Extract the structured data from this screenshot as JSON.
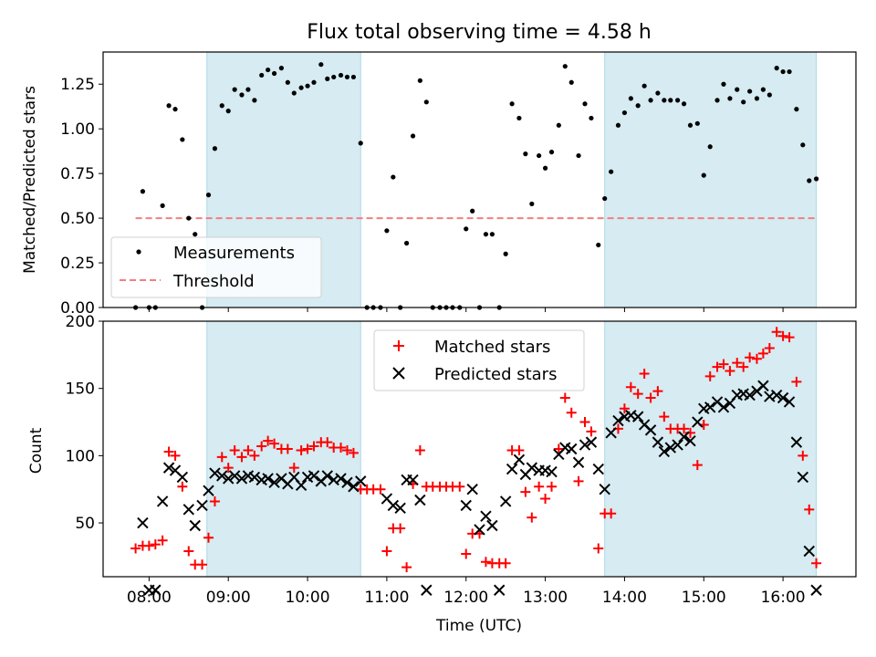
{
  "figure_title": "Flux total observing time = 4.58 h",
  "chart_data": [
    {
      "type": "scatter",
      "title": "Flux total observing time = 4.58 h",
      "xlabel": "",
      "ylabel": "Matched/Predicted stars",
      "xlim": [
        7.42,
        16.92
      ],
      "ylim": [
        0,
        1.43
      ],
      "yticks": [
        0.0,
        0.25,
        0.5,
        0.75,
        1.0,
        1.25
      ],
      "ytick_labels": [
        "0.00",
        "0.25",
        "0.50",
        "0.75",
        "1.00",
        "1.25"
      ],
      "shaded_intervals": [
        [
          8.73,
          10.67
        ],
        [
          13.75,
          16.42
        ]
      ],
      "legend_position": "lower-left",
      "threshold": {
        "name": "Threshold",
        "x": [
          7.83,
          16.42
        ],
        "y": 0.5,
        "color": "#f08080"
      },
      "series": [
        {
          "name": "Measurements",
          "color": "#000000",
          "marker": "dot",
          "x": [
            7.83,
            7.92,
            8.0,
            8.08,
            8.17,
            8.25,
            8.33,
            8.42,
            8.5,
            8.58,
            8.67,
            8.75,
            8.83,
            8.92,
            9.0,
            9.08,
            9.17,
            9.25,
            9.33,
            9.42,
            9.5,
            9.58,
            9.67,
            9.75,
            9.83,
            9.92,
            10.0,
            10.08,
            10.17,
            10.25,
            10.33,
            10.42,
            10.5,
            10.58,
            10.67,
            10.75,
            10.83,
            10.92,
            11.0,
            11.08,
            11.17,
            11.25,
            11.33,
            11.42,
            11.5,
            11.58,
            11.67,
            11.75,
            11.83,
            11.92,
            12.0,
            12.08,
            12.17,
            12.25,
            12.33,
            12.42,
            12.5,
            12.58,
            12.67,
            12.75,
            12.83,
            12.92,
            13.0,
            13.08,
            13.17,
            13.25,
            13.33,
            13.42,
            13.5,
            13.58,
            13.67,
            13.75,
            13.83,
            13.92,
            14.0,
            14.08,
            14.17,
            14.25,
            14.33,
            14.42,
            14.5,
            14.58,
            14.67,
            14.75,
            14.83,
            14.92,
            15.0,
            15.08,
            15.17,
            15.25,
            15.33,
            15.42,
            15.5,
            15.58,
            15.67,
            15.75,
            15.83,
            15.92,
            16.0,
            16.08,
            16.17,
            16.25,
            16.33,
            16.42
          ],
          "y": [
            0.0,
            0.65,
            0.0,
            0.0,
            0.57,
            1.13,
            1.11,
            0.94,
            0.5,
            0.41,
            0.0,
            0.63,
            0.89,
            1.13,
            1.1,
            1.22,
            1.19,
            1.22,
            1.16,
            1.3,
            1.33,
            1.31,
            1.34,
            1.26,
            1.2,
            1.23,
            1.24,
            1.26,
            1.36,
            1.28,
            1.29,
            1.3,
            1.29,
            1.29,
            0.92,
            0.0,
            0.0,
            0.0,
            0.43,
            0.73,
            0.0,
            0.36,
            0.96,
            1.27,
            1.15,
            0.0,
            0.0,
            0.0,
            0.0,
            0.0,
            0.44,
            0.54,
            0.0,
            0.41,
            0.41,
            0.0,
            0.3,
            1.14,
            1.06,
            0.86,
            0.58,
            0.85,
            0.78,
            0.87,
            1.02,
            1.35,
            1.26,
            0.85,
            1.14,
            1.06,
            0.35,
            0.61,
            0.76,
            1.02,
            1.09,
            1.17,
            1.13,
            1.24,
            1.16,
            1.2,
            1.16,
            1.16,
            1.16,
            1.14,
            1.02,
            1.03,
            0.74,
            0.9,
            1.16,
            1.25,
            1.17,
            1.22,
            1.15,
            1.21,
            1.17,
            1.22,
            1.19,
            1.34,
            1.32,
            1.32,
            1.11,
            0.91,
            0.71,
            0.72
          ]
        }
      ]
    },
    {
      "type": "scatter",
      "title": "",
      "xlabel": "Time (UTC)",
      "ylabel": "Count",
      "xlim": [
        7.42,
        16.92
      ],
      "ylim": [
        10,
        200
      ],
      "xticks": [
        8,
        9,
        10,
        11,
        12,
        13,
        14,
        15,
        16
      ],
      "xtick_labels": [
        "08:00",
        "09:00",
        "10:00",
        "11:00",
        "12:00",
        "13:00",
        "14:00",
        "15:00",
        "16:00"
      ],
      "yticks": [
        50,
        100,
        150,
        200
      ],
      "ytick_labels": [
        "50",
        "100",
        "150",
        "200"
      ],
      "shaded_intervals": [
        [
          8.73,
          10.67
        ],
        [
          13.75,
          16.42
        ]
      ],
      "legend_position": "upper-center",
      "series": [
        {
          "name": "Matched stars",
          "color": "#ff0000",
          "marker": "plus",
          "x": [
            7.83,
            7.92,
            8.0,
            8.08,
            8.17,
            8.25,
            8.33,
            8.42,
            8.5,
            8.58,
            8.67,
            8.75,
            8.83,
            8.92,
            9.0,
            9.08,
            9.17,
            9.25,
            9.33,
            9.42,
            9.5,
            9.58,
            9.67,
            9.75,
            9.83,
            9.92,
            10.0,
            10.08,
            10.17,
            10.25,
            10.33,
            10.42,
            10.5,
            10.58,
            10.67,
            10.75,
            10.83,
            10.92,
            11.0,
            11.08,
            11.17,
            11.25,
            11.33,
            11.42,
            11.5,
            11.58,
            11.67,
            11.75,
            11.83,
            11.92,
            12.0,
            12.08,
            12.17,
            12.25,
            12.33,
            12.42,
            12.5,
            12.58,
            12.67,
            12.75,
            12.83,
            12.92,
            13.0,
            13.08,
            13.17,
            13.25,
            13.33,
            13.42,
            13.5,
            13.58,
            13.67,
            13.75,
            13.83,
            13.92,
            14.0,
            14.08,
            14.17,
            14.25,
            14.33,
            14.42,
            14.5,
            14.58,
            14.67,
            14.75,
            14.83,
            14.92,
            15.0,
            15.08,
            15.17,
            15.25,
            15.33,
            15.42,
            15.5,
            15.58,
            15.67,
            15.75,
            15.83,
            15.92,
            16.0,
            16.08,
            16.17,
            16.25,
            16.33,
            16.42
          ],
          "y": [
            31,
            33,
            33,
            34,
            37,
            103,
            100,
            77,
            29,
            19,
            19,
            39,
            66,
            99,
            91,
            104,
            99,
            104,
            100,
            107,
            111,
            109,
            105,
            105,
            91,
            104,
            105,
            107,
            110,
            110,
            106,
            106,
            104,
            102,
            75,
            75,
            75,
            75,
            29,
            46,
            46,
            17,
            79,
            104,
            77,
            77,
            77,
            77,
            77,
            77,
            27,
            42,
            42,
            21,
            20,
            20,
            20,
            104,
            104,
            73,
            54,
            77,
            68,
            77,
            105,
            143,
            132,
            81,
            125,
            118,
            31,
            57,
            57,
            120,
            135,
            151,
            146,
            161,
            143,
            148,
            129,
            120,
            120,
            120,
            117,
            93,
            123,
            159,
            166,
            168,
            163,
            169,
            166,
            173,
            172,
            176,
            180,
            192,
            189,
            188,
            155,
            100,
            60,
            20
          ]
        },
        {
          "name": "Predicted stars",
          "color": "#000000",
          "marker": "x",
          "x": [
            7.92,
            8.0,
            8.08,
            8.17,
            8.25,
            8.33,
            8.42,
            8.5,
            8.58,
            8.67,
            8.75,
            8.83,
            8.92,
            9.0,
            9.08,
            9.17,
            9.25,
            9.33,
            9.42,
            9.5,
            9.58,
            9.67,
            9.75,
            9.83,
            9.92,
            10.0,
            10.08,
            10.17,
            10.25,
            10.33,
            10.42,
            10.5,
            10.58,
            10.67,
            11.0,
            11.08,
            11.17,
            11.25,
            11.33,
            11.42,
            11.5,
            12.0,
            12.08,
            12.17,
            12.25,
            12.33,
            12.42,
            12.5,
            12.58,
            12.67,
            12.75,
            12.83,
            12.92,
            13.0,
            13.08,
            13.17,
            13.25,
            13.33,
            13.42,
            13.5,
            13.58,
            13.67,
            13.75,
            13.83,
            13.92,
            14.0,
            14.08,
            14.17,
            14.25,
            14.33,
            14.42,
            14.5,
            14.58,
            14.67,
            14.75,
            14.83,
            14.92,
            15.0,
            15.08,
            15.17,
            15.25,
            15.33,
            15.42,
            15.5,
            15.58,
            15.67,
            15.75,
            15.83,
            15.92,
            16.0,
            16.08,
            16.17,
            16.25,
            16.33,
            16.42
          ],
          "y": [
            50,
            0,
            0,
            66,
            91,
            89,
            84,
            60,
            48,
            63,
            74,
            87,
            85,
            83,
            85,
            83,
            85,
            84,
            82,
            83,
            80,
            83,
            79,
            84,
            78,
            84,
            85,
            81,
            85,
            82,
            83,
            80,
            77,
            81,
            68,
            63,
            61,
            82,
            82,
            67,
            0,
            63,
            75,
            45,
            55,
            48,
            0,
            66,
            90,
            97,
            86,
            91,
            89,
            89,
            88,
            101,
            106,
            105,
            95,
            108,
            110,
            90,
            75,
            117,
            126,
            129,
            130,
            129,
            123,
            119,
            110,
            103,
            106,
            108,
            114,
            111,
            125,
            135,
            136,
            140,
            136,
            139,
            145,
            146,
            145,
            148,
            152,
            144,
            145,
            143,
            140,
            110,
            84,
            29,
            0
          ]
        }
      ]
    }
  ]
}
